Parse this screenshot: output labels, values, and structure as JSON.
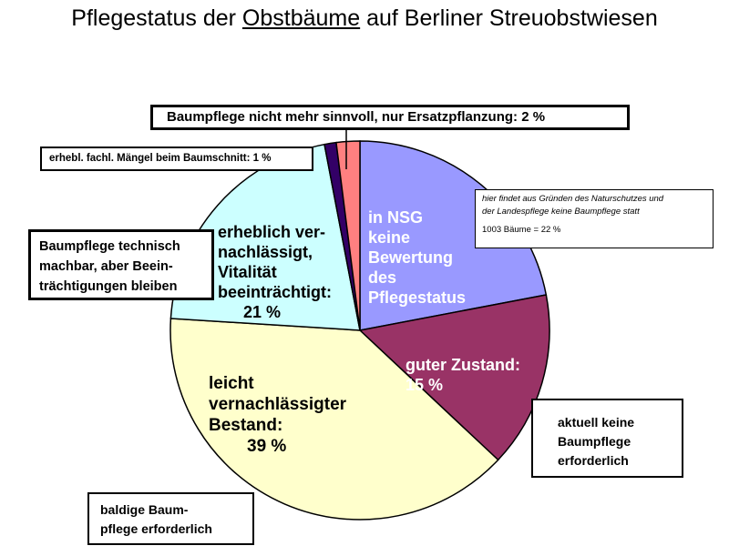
{
  "title": {
    "before": "Pflegestatus der ",
    "underlined": "Obstbäume",
    "after": " auf Berliner Streuobstwiesen"
  },
  "chart_data": {
    "type": "pie",
    "title": "Pflegestatus der Obstbäume auf Berliner Streuobstwiesen",
    "slices": [
      {
        "label": "in NSG keine Bewertung des Pflegestatus",
        "value": 22,
        "color": "#9999ff"
      },
      {
        "label": "guter Zustand",
        "value": 15,
        "color": "#993366"
      },
      {
        "label": "leicht vernachlässigter Bestand",
        "value": 39,
        "color": "#ffffcc"
      },
      {
        "label": "erheblich vernachlässigt, Vitalität beeinträchtigt",
        "value": 21,
        "color": "#ccffff"
      },
      {
        "label": "erhebl. fachl. Mängel beim Baumschnitt",
        "value": 1,
        "color": "#330066"
      },
      {
        "label": "Baumpflege nicht mehr sinnvoll, nur Ersatzpflanzung",
        "value": 2,
        "color": "#ff8080"
      }
    ]
  },
  "labels": {
    "nsg": [
      "in NSG",
      "keine",
      "Bewertung",
      "des",
      "Pflegestatus"
    ],
    "good": [
      "guter Zustand:",
      "15 %"
    ],
    "light": [
      "leicht",
      "vernachlässigter",
      "Bestand:",
      "39 %"
    ],
    "heavy": [
      "erheblich ver-",
      "nachlässigt,",
      "Vitalität",
      "beeinträchtigt:",
      "21 %"
    ]
  },
  "callouts": {
    "replacement": "Baumpflege nicht mehr sinnvoll, nur Ersatzpflanzung: 2 %",
    "defects": "erhebl. fachl. Mängel beim Baumschnitt: 1 %",
    "technical": [
      "Baumpflege technisch",
      "machbar, aber Beein-",
      "trächtigungen bleiben"
    ],
    "no_care": [
      "aktuell keine",
      "Baumpflege",
      "erforderlich"
    ],
    "soon": [
      "baldige Baum-",
      "pflege erforderlich"
    ]
  },
  "note": {
    "line1": "hier findet aus Gründen des Naturschutzes und",
    "line2": "der Landespflege keine Baumpflege statt",
    "line3": "1003  Bäume = 22 %"
  }
}
